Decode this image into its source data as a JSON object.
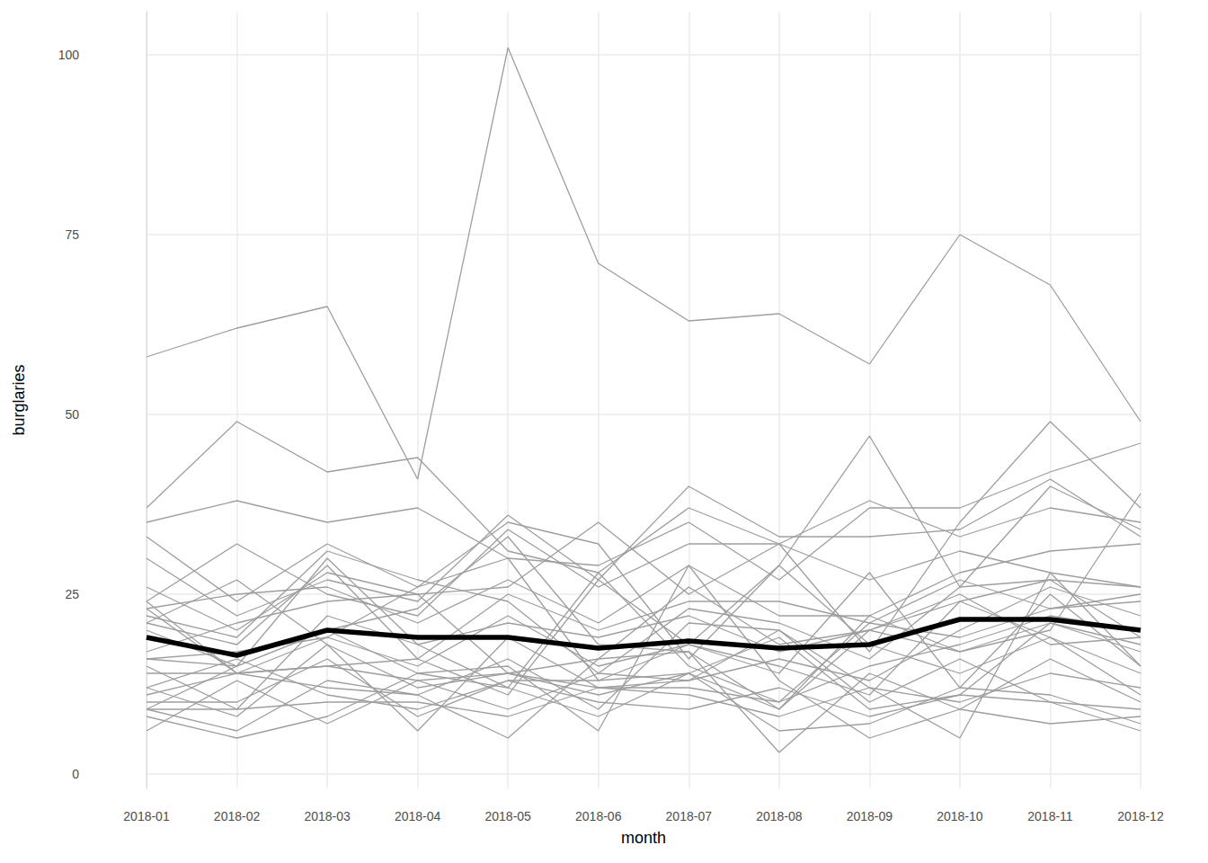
{
  "chart_data": {
    "type": "line",
    "x_label": "month",
    "y_label": "burglaries",
    "categories": [
      "2018-01",
      "2018-02",
      "2018-03",
      "2018-04",
      "2018-05",
      "2018-06",
      "2018-07",
      "2018-08",
      "2018-09",
      "2018-10",
      "2018-11",
      "2018-12"
    ],
    "ylim": [
      -2,
      106
    ],
    "yticks": [
      0,
      25,
      50,
      75,
      100
    ],
    "grid": true,
    "series": [
      {
        "color": "#9e9e9e",
        "line_style": "thin",
        "values": [
          58,
          62,
          65,
          41,
          101,
          71,
          63,
          64,
          57,
          75,
          68,
          49
        ]
      },
      {
        "color": "#9e9e9e",
        "line_style": "thin",
        "values": [
          37,
          49,
          42,
          44,
          31,
          28,
          37,
          32,
          17,
          35,
          49,
          37
        ]
      },
      {
        "color": "#9e9e9e",
        "line_style": "thin",
        "values": [
          35,
          38,
          35,
          37,
          30,
          29,
          35,
          27,
          37,
          37,
          42,
          46
        ]
      },
      {
        "color": "#9e9e9e",
        "line_style": "thin",
        "values": [
          33,
          24,
          32,
          26,
          35,
          32,
          16,
          29,
          47,
          26,
          40,
          34
        ]
      },
      {
        "color": "#9e9e9e",
        "line_style": "thin",
        "values": [
          30,
          22,
          27,
          24,
          36,
          27,
          40,
          33,
          33,
          34,
          41,
          33
        ]
      },
      {
        "color": "#9e9e9e",
        "line_style": "thin",
        "values": [
          26,
          20,
          28,
          25,
          26,
          35,
          25,
          32,
          38,
          33,
          37,
          35
        ]
      },
      {
        "color": "#9e9e9e",
        "line_style": "thin",
        "values": [
          24,
          32,
          25,
          22,
          34,
          26,
          32,
          32,
          27,
          31,
          28,
          26
        ]
      },
      {
        "color": "#9e9e9e",
        "line_style": "thin",
        "values": [
          23,
          25,
          26,
          21,
          27,
          21,
          29,
          22,
          22,
          28,
          31,
          32
        ]
      },
      {
        "color": "#9e9e9e",
        "line_style": "thin",
        "values": [
          22,
          19,
          31,
          27,
          24,
          14,
          23,
          21,
          16,
          26,
          27,
          26
        ]
      },
      {
        "color": "#9e9e9e",
        "line_style": "thin",
        "values": [
          21,
          18,
          29,
          16,
          25,
          20,
          24,
          24,
          21,
          27,
          23,
          24
        ]
      },
      {
        "color": "#9e9e9e",
        "line_style": "thin",
        "values": [
          20,
          15,
          30,
          18,
          21,
          19,
          22,
          17,
          20,
          25,
          18,
          19
        ]
      },
      {
        "color": "#9e9e9e",
        "line_style": "thin",
        "values": [
          17,
          21,
          24,
          25,
          14,
          16,
          26,
          18,
          20,
          24,
          27,
          19
        ]
      },
      {
        "color": "#9e9e9e",
        "line_style": "thin",
        "values": [
          16,
          15,
          20,
          23,
          33,
          18,
          17,
          9,
          22,
          17,
          20,
          39
        ]
      },
      {
        "color": "#9e9e9e",
        "line_style": "thin",
        "values": [
          16,
          17,
          19,
          15,
          22,
          15,
          18,
          14,
          28,
          12,
          25,
          15
        ]
      },
      {
        "color": "#9e9e9e",
        "line_style": "thin",
        "values": [
          15,
          9,
          22,
          18,
          12,
          28,
          15,
          10,
          15,
          18,
          22,
          20
        ]
      },
      {
        "color": "#9e9e9e",
        "line_style": "thin",
        "values": [
          12,
          8,
          18,
          12,
          14,
          12,
          13,
          16,
          13,
          20,
          26,
          22
        ]
      },
      {
        "color": "#9e9e9e",
        "line_style": "thin",
        "values": [
          11,
          14,
          12,
          11,
          16,
          9,
          21,
          20,
          12,
          10,
          14,
          12
        ]
      },
      {
        "color": "#9e9e9e",
        "line_style": "thin",
        "values": [
          10,
          10,
          16,
          8,
          13,
          13,
          14,
          19,
          9,
          11,
          21,
          17
        ]
      },
      {
        "color": "#9e9e9e",
        "line_style": "thin",
        "values": [
          9,
          9,
          10,
          10,
          8,
          12,
          11,
          8,
          12,
          5,
          28,
          15
        ]
      },
      {
        "color": "#9e9e9e",
        "line_style": "thin",
        "values": [
          9,
          6,
          13,
          11,
          5,
          16,
          17,
          3,
          14,
          9,
          16,
          10
        ]
      },
      {
        "color": "#9e9e9e",
        "line_style": "thin",
        "values": [
          8,
          5,
          8,
          14,
          15,
          6,
          29,
          13,
          5,
          9,
          7,
          8
        ]
      },
      {
        "color": "#9e9e9e",
        "line_style": "thin",
        "values": [
          6,
          13,
          7,
          13,
          9,
          14,
          13,
          20,
          10,
          16,
          10,
          6
        ]
      },
      {
        "color": "#9e9e9e",
        "line_style": "thin",
        "values": [
          12,
          16,
          11,
          9,
          13,
          10,
          9,
          12,
          8,
          11,
          10,
          9
        ]
      },
      {
        "color": "#9e9e9e",
        "line_style": "thin",
        "values": [
          24,
          14,
          19,
          26,
          30,
          13,
          18,
          15,
          11,
          24,
          19,
          14
        ]
      },
      {
        "color": "#9e9e9e",
        "line_style": "thin",
        "values": [
          23,
          14,
          15,
          13,
          14,
          11,
          14,
          9,
          20,
          17,
          21,
          18
        ]
      },
      {
        "color": "#9e9e9e",
        "line_style": "thin",
        "values": [
          21,
          27,
          18,
          6,
          19,
          12,
          12,
          10,
          21,
          19,
          23,
          25
        ]
      },
      {
        "color": "#9e9e9e",
        "line_style": "thin",
        "values": [
          14,
          14,
          15,
          16,
          11,
          27,
          18,
          29,
          18,
          14,
          19,
          11
        ]
      },
      {
        "color": "#9e9e9e",
        "line_style": "thin",
        "values": [
          9,
          15,
          20,
          14,
          12,
          8,
          14,
          6,
          7,
          12,
          11,
          7
        ]
      },
      {
        "color": "#000000",
        "line_style": "thick",
        "values": [
          19,
          16.5,
          20,
          19,
          19,
          17.5,
          18.5,
          17.5,
          18,
          21.5,
          21.5,
          20
        ]
      }
    ]
  }
}
